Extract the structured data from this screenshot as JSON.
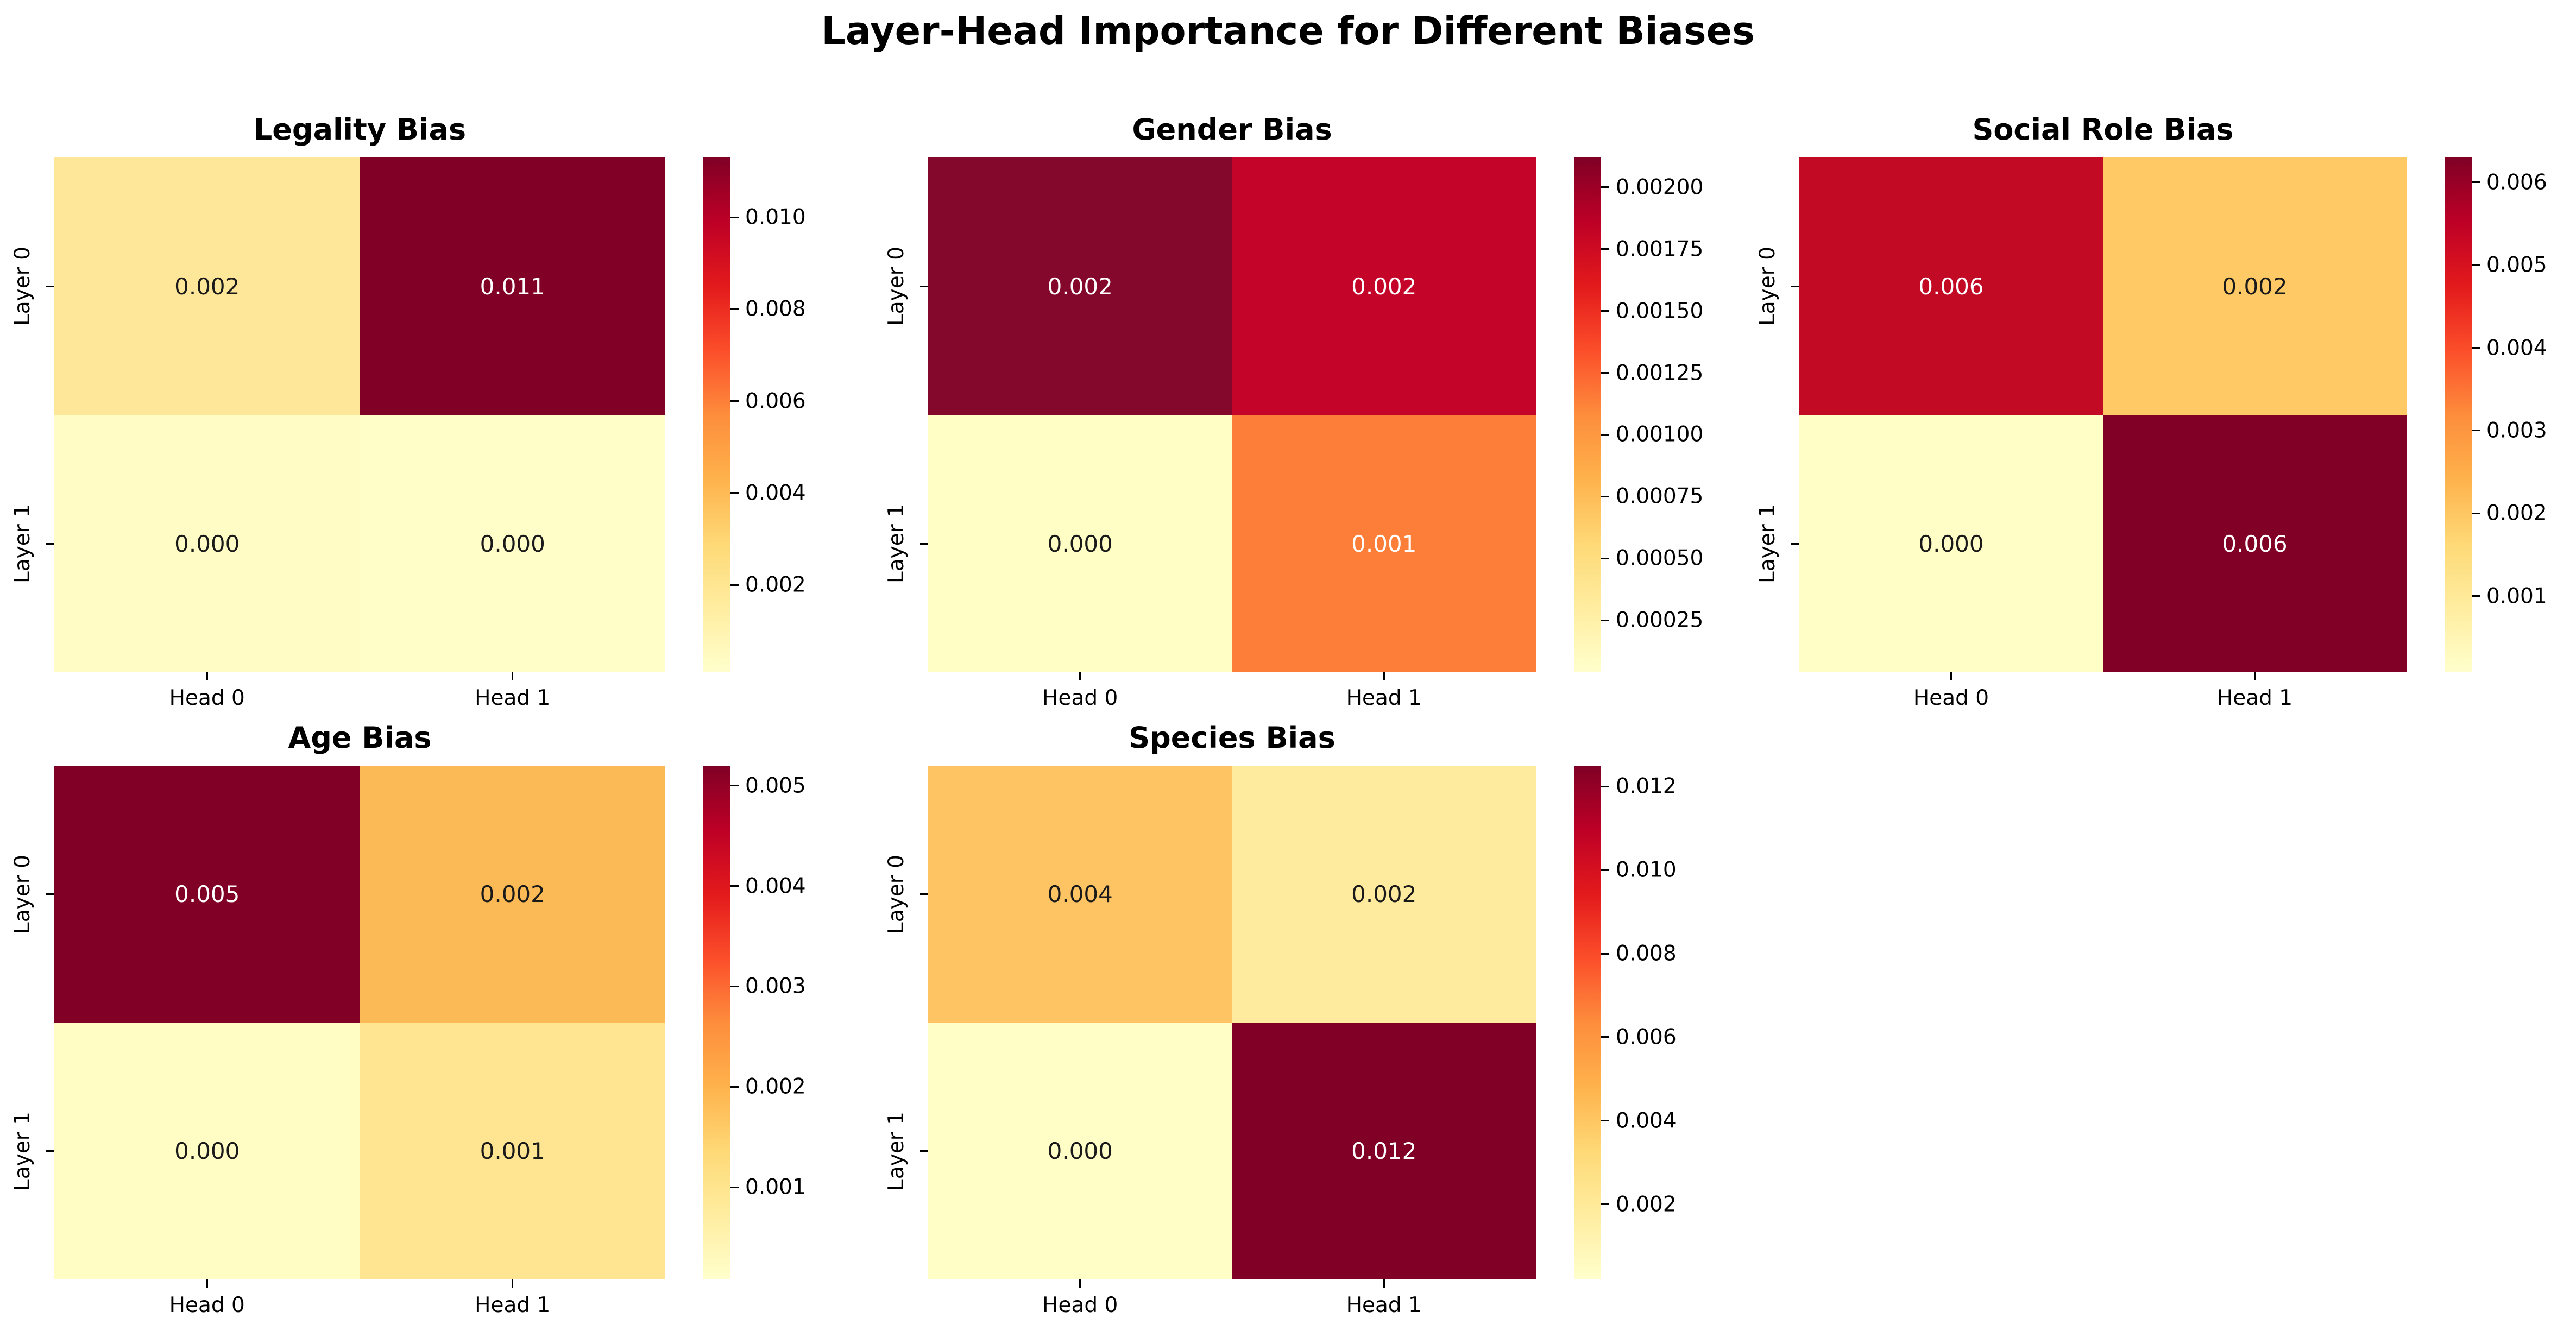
{
  "figure": {
    "title": "Layer-Head Importance for Different Biases",
    "background_color": "#ffffff",
    "text_color": "#000000"
  },
  "chart_data": [
    {
      "type": "heatmap",
      "title": "Legality Bias",
      "x_tick_labels": [
        "Head 0",
        "Head 1"
      ],
      "y_tick_labels": [
        "Layer 0",
        "Layer 1"
      ],
      "values": [
        [
          0.002,
          0.011
        ],
        [
          0.0,
          0.0
        ]
      ],
      "value_labels": [
        [
          "0.002",
          "0.011"
        ],
        [
          "0.000",
          "0.000"
        ]
      ],
      "cell_colors": [
        [
          "#FFE79A",
          "#800026"
        ],
        [
          "#FFFDC5",
          "#FFFEC9"
        ]
      ],
      "colormap": "YlOrRd",
      "vmin": 0.0001,
      "vmax": 0.0113,
      "colorbar_ticks": [
        {
          "label": "0.010",
          "value": 0.01
        },
        {
          "label": "0.008",
          "value": 0.008
        },
        {
          "label": "0.006",
          "value": 0.006
        },
        {
          "label": "0.004",
          "value": 0.004
        },
        {
          "label": "0.002",
          "value": 0.002
        }
      ]
    },
    {
      "type": "heatmap",
      "title": "Gender Bias",
      "x_tick_labels": [
        "Head 0",
        "Head 1"
      ],
      "y_tick_labels": [
        "Layer 0",
        "Layer 1"
      ],
      "values": [
        [
          0.002,
          0.002
        ],
        [
          0.0,
          0.001
        ]
      ],
      "value_labels": [
        [
          "0.002",
          "0.002"
        ],
        [
          "0.000",
          "0.001"
        ]
      ],
      "cell_colors": [
        [
          "#84082B",
          "#C40529"
        ],
        [
          "#FFFEC5",
          "#FD7E38"
        ]
      ],
      "colormap": "YlOrRd",
      "vmin": 4e-05,
      "vmax": 0.00212,
      "colorbar_ticks": [
        {
          "label": "0.00200",
          "value": 0.002
        },
        {
          "label": "0.00175",
          "value": 0.00175
        },
        {
          "label": "0.00150",
          "value": 0.0015
        },
        {
          "label": "0.00125",
          "value": 0.00125
        },
        {
          "label": "0.00100",
          "value": 0.001
        },
        {
          "label": "0.00075",
          "value": 0.00075
        },
        {
          "label": "0.00050",
          "value": 0.0005
        },
        {
          "label": "0.00025",
          "value": 0.00025
        }
      ]
    },
    {
      "type": "heatmap",
      "title": "Social Role Bias",
      "x_tick_labels": [
        "Head 0",
        "Head 1"
      ],
      "y_tick_labels": [
        "Layer 0",
        "Layer 1"
      ],
      "values": [
        [
          0.006,
          0.002
        ],
        [
          0.0,
          0.006
        ]
      ],
      "value_labels": [
        [
          "0.006",
          "0.002"
        ],
        [
          "0.000",
          "0.006"
        ]
      ],
      "cell_colors": [
        [
          "#C20A25",
          "#FFCA66"
        ],
        [
          "#FFFEC6",
          "#800026"
        ]
      ],
      "colormap": "YlOrRd",
      "vmin": 8e-05,
      "vmax": 0.0063,
      "colorbar_ticks": [
        {
          "label": "0.006",
          "value": 0.006
        },
        {
          "label": "0.005",
          "value": 0.005
        },
        {
          "label": "0.004",
          "value": 0.004
        },
        {
          "label": "0.003",
          "value": 0.003
        },
        {
          "label": "0.002",
          "value": 0.002
        },
        {
          "label": "0.001",
          "value": 0.001
        }
      ]
    },
    {
      "type": "heatmap",
      "title": "Age Bias",
      "x_tick_labels": [
        "Head 0",
        "Head 1"
      ],
      "y_tick_labels": [
        "Layer 0",
        "Layer 1"
      ],
      "values": [
        [
          0.005,
          0.002
        ],
        [
          0.0,
          0.001
        ]
      ],
      "value_labels": [
        [
          "0.005",
          "0.002"
        ],
        [
          "0.000",
          "0.001"
        ]
      ],
      "cell_colors": [
        [
          "#800026",
          "#FBBA55"
        ],
        [
          "#FFFDC4",
          "#FFE592"
        ]
      ],
      "colormap": "YlOrRd",
      "vmin": 8e-05,
      "vmax": 0.0052,
      "colorbar_ticks": [
        {
          "label": "0.005",
          "value": 0.005
        },
        {
          "label": "0.004",
          "value": 0.004
        },
        {
          "label": "0.003",
          "value": 0.003
        },
        {
          "label": "0.002",
          "value": 0.002
        },
        {
          "label": "0.001",
          "value": 0.001
        }
      ]
    },
    {
      "type": "heatmap",
      "title": "Species Bias",
      "x_tick_labels": [
        "Head 0",
        "Head 1"
      ],
      "y_tick_labels": [
        "Layer 0",
        "Layer 1"
      ],
      "values": [
        [
          0.004,
          0.002
        ],
        [
          0.0,
          0.012
        ]
      ],
      "value_labels": [
        [
          "0.004",
          "0.002"
        ],
        [
          "0.000",
          "0.012"
        ]
      ],
      "cell_colors": [
        [
          "#FEC363",
          "#FFEB9E"
        ],
        [
          "#FFFEC7",
          "#800026"
        ]
      ],
      "colormap": "YlOrRd",
      "vmin": 0.0002,
      "vmax": 0.0125,
      "colorbar_ticks": [
        {
          "label": "0.012",
          "value": 0.012
        },
        {
          "label": "0.010",
          "value": 0.01
        },
        {
          "label": "0.008",
          "value": 0.008
        },
        {
          "label": "0.006",
          "value": 0.006
        },
        {
          "label": "0.004",
          "value": 0.004
        },
        {
          "label": "0.002",
          "value": 0.002
        }
      ]
    }
  ]
}
